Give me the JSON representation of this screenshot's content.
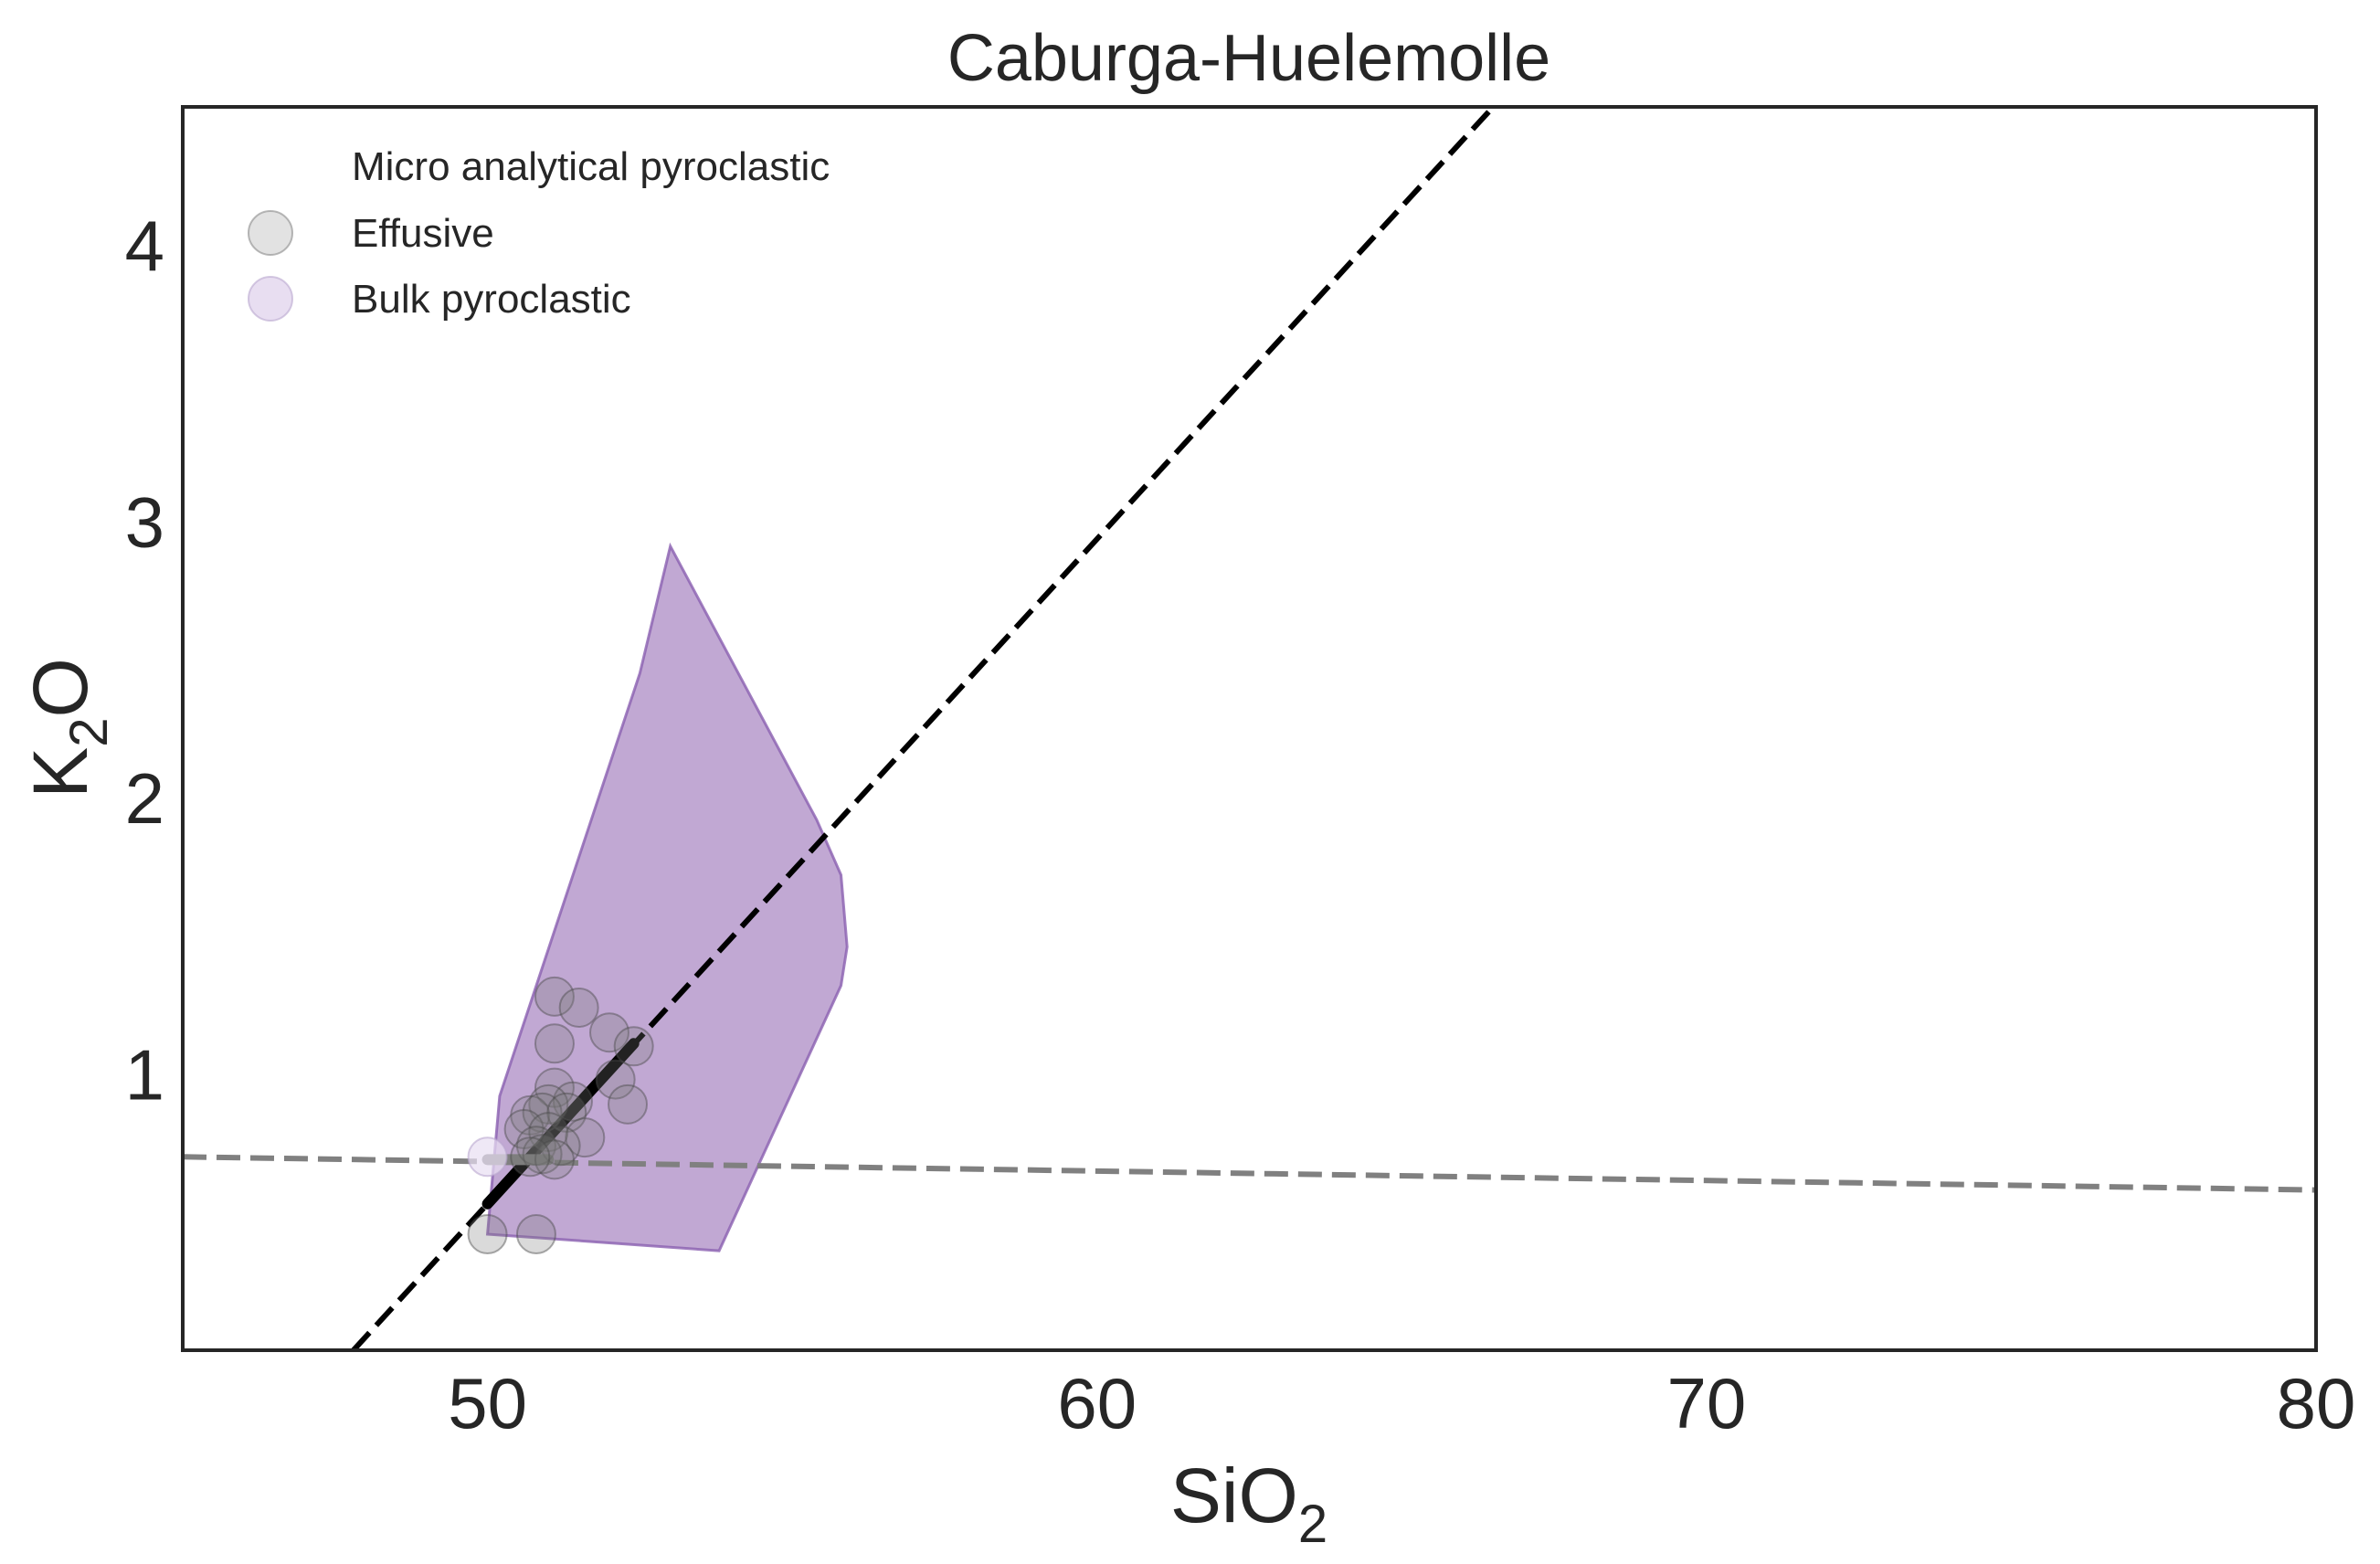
{
  "chart_data": {
    "type": "scatter",
    "title": "Caburga-Huelemolle",
    "xlabel": {
      "main": "SiO",
      "sub": "2"
    },
    "ylabel": {
      "main": "K",
      "sub": "2",
      "tail": "O"
    },
    "xlim": [
      45,
      80
    ],
    "ylim": [
      0,
      4.5
    ],
    "x_ticks": [
      50,
      60,
      70,
      80
    ],
    "y_ticks": [
      1,
      2,
      3,
      4
    ],
    "grid": false,
    "legend": {
      "placement": "top-left",
      "entries": [
        {
          "label": "Micro analytical pyroclastic",
          "marker": "none"
        },
        {
          "label": "Effusive",
          "color": "#bfbfbf"
        },
        {
          "label": "Bulk pyroclastic",
          "color": "#d8c8e8"
        }
      ]
    },
    "colors": {
      "polygon_fill": "#9b72b8",
      "polygon_stroke": "#8a5fb0",
      "effusive_marker": "#7a7a7a",
      "bulk_marker": "#e8def2",
      "black_line": "#000000",
      "gray_line": "#808080"
    },
    "polygon": {
      "name": "Micro analytical pyroclastic",
      "points": [
        [
          50.0,
          0.42
        ],
        [
          53.8,
          0.36
        ],
        [
          55.8,
          1.32
        ],
        [
          55.9,
          1.46
        ],
        [
          55.8,
          1.72
        ],
        [
          55.4,
          1.92
        ],
        [
          53.0,
          2.91
        ],
        [
          52.5,
          2.45
        ],
        [
          50.2,
          0.92
        ]
      ]
    },
    "series": [
      {
        "name": "Effusive",
        "points": [
          [
            50.0,
            0.42
          ],
          [
            50.8,
            0.42
          ],
          [
            51.1,
            1.28
          ],
          [
            51.5,
            1.24
          ],
          [
            52.0,
            1.15
          ],
          [
            52.4,
            1.1
          ],
          [
            51.1,
            1.11
          ],
          [
            51.1,
            0.95
          ],
          [
            52.1,
            0.98
          ],
          [
            52.3,
            0.89
          ],
          [
            51.4,
            0.9
          ],
          [
            51.0,
            0.89
          ],
          [
            50.7,
            0.85
          ],
          [
            50.9,
            0.86
          ],
          [
            51.3,
            0.86
          ],
          [
            50.6,
            0.8
          ],
          [
            51.0,
            0.79
          ],
          [
            51.6,
            0.77
          ],
          [
            50.8,
            0.74
          ],
          [
            51.2,
            0.74
          ],
          [
            50.9,
            0.71
          ],
          [
            51.1,
            0.69
          ],
          [
            50.7,
            0.7
          ]
        ]
      },
      {
        "name": "Bulk pyroclastic",
        "points": [
          [
            50.0,
            0.7
          ]
        ]
      }
    ],
    "lines": [
      {
        "style": "dashed",
        "color": "#000000",
        "points": [
          [
            47.8,
            0.0
          ],
          [
            66.5,
            4.5
          ]
        ]
      },
      {
        "style": "dashed",
        "color": "#808080",
        "points": [
          [
            45.0,
            0.7
          ],
          [
            80.0,
            0.58
          ]
        ]
      },
      {
        "style": "solid-thick",
        "color": "#000000",
        "points": [
          [
            50.0,
            0.53
          ],
          [
            52.4,
            1.11
          ]
        ]
      },
      {
        "style": "solid-thick",
        "color": "#808080",
        "points": [
          [
            50.0,
            0.69
          ],
          [
            51.0,
            0.69
          ]
        ]
      }
    ]
  }
}
